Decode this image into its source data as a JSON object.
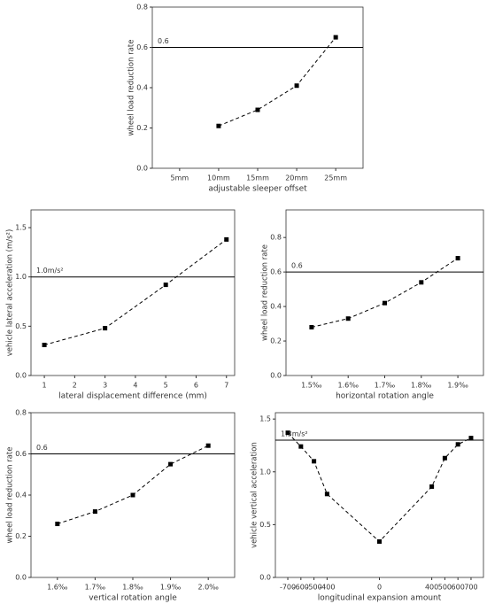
{
  "chart_data": [
    {
      "type": "line",
      "xlabel": "adjustable sleeper offset",
      "ylabel": "wheel load reduction rate",
      "categories": [
        "5mm",
        "10mm",
        "15mm",
        "20mm",
        "25mm"
      ],
      "values": [
        null,
        0.21,
        0.29,
        0.41,
        0.65
      ],
      "color": "#000000",
      "ylim": [
        0,
        0.8
      ],
      "yticks": [
        {
          "value": 0,
          "label": "0.0"
        },
        {
          "value": 0.2,
          "label": "0.2"
        },
        {
          "value": 0.4,
          "label": "0.4"
        },
        {
          "value": 0.6,
          "label": "0.6"
        },
        {
          "value": 0.8,
          "label": "0.8"
        }
      ],
      "reference_line": {
        "value": 0.6,
        "label": "0.6"
      }
    },
    {
      "type": "line",
      "xlabel": "lateral displacement difference (mm)",
      "ylabel": "vehicle lateral acceleration (m/s²)",
      "x": [
        1,
        3,
        5,
        7
      ],
      "values": [
        0.31,
        0.48,
        0.92,
        1.38
      ],
      "color": "#000000",
      "xlim": [
        0.56,
        7.27
      ],
      "xticks": [
        1,
        2,
        3,
        4,
        5,
        6,
        7
      ],
      "ylim": [
        0,
        1.68
      ],
      "yticks": [
        {
          "value": 0,
          "label": "0.0"
        },
        {
          "value": 0.5,
          "label": "0.5"
        },
        {
          "value": 1,
          "label": "1.0"
        },
        {
          "value": 1.5,
          "label": "1.5"
        }
      ],
      "reference_line": {
        "value": 1.0,
        "label": "1.0m/s²"
      }
    },
    {
      "type": "line",
      "xlabel": "horizontal rotation angle",
      "ylabel": "wheel load reduction rate",
      "categories": [
        "1.5‰",
        "1.6‰",
        "1.7‰",
        "1.8‰",
        "1.9‰"
      ],
      "values": [
        0.28,
        0.33,
        0.42,
        0.54,
        0.68
      ],
      "color": "#000000",
      "ylim": [
        0,
        0.96
      ],
      "yticks": [
        {
          "value": 0,
          "label": "0.0"
        },
        {
          "value": 0.2,
          "label": "0.2"
        },
        {
          "value": 0.4,
          "label": "0.4"
        },
        {
          "value": 0.6,
          "label": "0.6"
        },
        {
          "value": 0.8,
          "label": "0.8"
        }
      ],
      "reference_line": {
        "value": 0.6,
        "label": "0.6"
      }
    },
    {
      "type": "line",
      "xlabel": "vertical rotation angle",
      "ylabel": "wheel load reduction rate",
      "categories": [
        "1.6‰",
        "1.7‰",
        "1.8‰",
        "1.9‰",
        "2.0‰"
      ],
      "values": [
        0.26,
        0.32,
        0.4,
        0.55,
        0.64
      ],
      "color": "#000000",
      "ylim": [
        0,
        0.8
      ],
      "yticks": [
        {
          "value": 0,
          "label": "0.0"
        },
        {
          "value": 0.2,
          "label": "0.2"
        },
        {
          "value": 0.4,
          "label": "0.4"
        },
        {
          "value": 0.6,
          "label": "0.6"
        },
        {
          "value": 0.8,
          "label": "0.8"
        }
      ],
      "reference_line": {
        "value": 0.6,
        "label": "0.6"
      }
    },
    {
      "type": "line",
      "xlabel": "longitudinal expansion amount",
      "ylabel": "vehicle vertical acceleration",
      "x": [
        -700,
        -600,
        -500,
        -400,
        0,
        400,
        500,
        600,
        700
      ],
      "values": [
        1.37,
        1.24,
        1.1,
        0.79,
        0.34,
        0.86,
        1.13,
        1.26,
        1.32
      ],
      "color": "#000000",
      "xlim": [
        -795,
        795
      ],
      "xticks": [
        -700,
        -600,
        -500,
        -400,
        0,
        400,
        500,
        600,
        700
      ],
      "ylim": [
        0,
        1.56
      ],
      "yticks": [
        {
          "value": 0,
          "label": "0.0"
        },
        {
          "value": 0.5,
          "label": "0.5"
        },
        {
          "value": 1,
          "label": "1.0"
        },
        {
          "value": 1.5,
          "label": "1.5"
        }
      ],
      "reference_line": {
        "value": 1.3,
        "label": "1.3m/s²"
      }
    }
  ]
}
